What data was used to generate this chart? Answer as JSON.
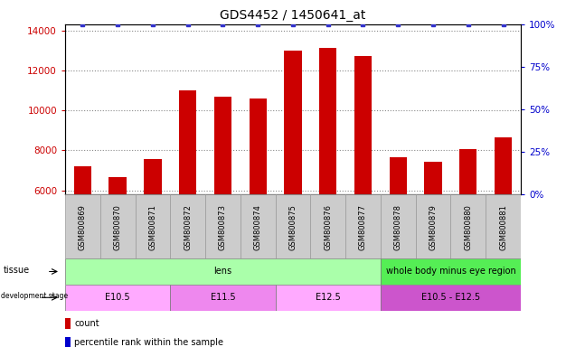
{
  "title": "GDS4452 / 1450641_at",
  "samples": [
    "GSM800869",
    "GSM800870",
    "GSM800871",
    "GSM800872",
    "GSM800873",
    "GSM800874",
    "GSM800875",
    "GSM800876",
    "GSM800877",
    "GSM800878",
    "GSM800879",
    "GSM800880",
    "GSM800881"
  ],
  "counts": [
    7200,
    6650,
    7550,
    11000,
    10700,
    10600,
    13000,
    13100,
    12700,
    7650,
    7450,
    8050,
    8650
  ],
  "percentile_ranks": [
    100,
    100,
    100,
    100,
    100,
    100,
    100,
    100,
    100,
    100,
    100,
    100,
    100
  ],
  "bar_color": "#cc0000",
  "dot_color": "#3333cc",
  "ylim_left": [
    5800,
    14300
  ],
  "yticks_left": [
    6000,
    8000,
    10000,
    12000,
    14000
  ],
  "ylim_right": [
    0,
    100
  ],
  "yticks_right": [
    0,
    25,
    50,
    75,
    100
  ],
  "ylabel_left_color": "#cc0000",
  "ylabel_right_color": "#0000cc",
  "tissue_segments": [
    {
      "text": "lens",
      "start": 0,
      "end": 9,
      "color": "#aaffaa"
    },
    {
      "text": "whole body minus eye region",
      "start": 9,
      "end": 13,
      "color": "#55ee55"
    }
  ],
  "dev_segments": [
    {
      "text": "E10.5",
      "start": 0,
      "end": 3,
      "color": "#ffaaff"
    },
    {
      "text": "E11.5",
      "start": 3,
      "end": 6,
      "color": "#ee88ee"
    },
    {
      "text": "E12.5",
      "start": 6,
      "end": 9,
      "color": "#ffaaff"
    },
    {
      "text": "E10.5 - E12.5",
      "start": 9,
      "end": 13,
      "color": "#cc55cc"
    }
  ],
  "legend_count_color": "#cc0000",
  "legend_percentile_color": "#0000cc",
  "bg_color": "#ffffff",
  "grid_color": "#888888",
  "xtick_bg_color": "#cccccc",
  "bar_width": 0.5
}
